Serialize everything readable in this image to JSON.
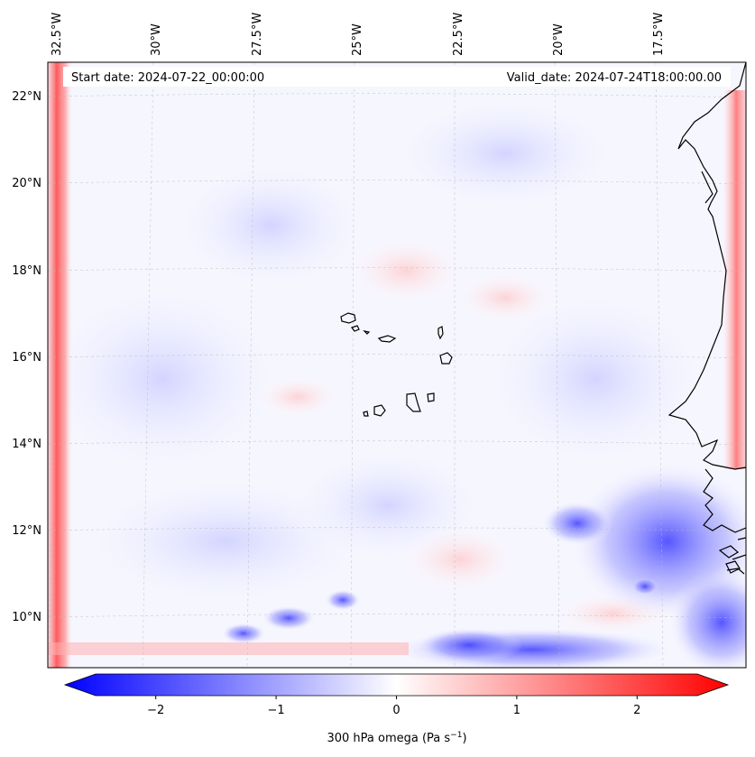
{
  "map": {
    "start_date": "Start date: 2024-07-22_00:00:00",
    "valid_date": "Valid_date: 2024-07-24T18:00:00.00",
    "lon_labels": [
      "32.5°W",
      "30°W",
      "27.5°W",
      "25°W",
      "22.5°W",
      "20°W",
      "17.5°W"
    ],
    "lat_labels": [
      "22°N",
      "20°N",
      "18°N",
      "16°N",
      "14°N",
      "12°N",
      "10°N"
    ],
    "colorbar": {
      "ticks": [
        "−2",
        "−1",
        "0",
        "1",
        "2"
      ],
      "tick_values": [
        -2,
        -1,
        0,
        1,
        2
      ],
      "range": [
        -2.5,
        2.5
      ],
      "label": "300 hPa omega (Pa s",
      "label_sup": "−1",
      "label_end": ")",
      "extend": "both",
      "colormap": "bwr"
    },
    "colors": {
      "negative": "#0000ff",
      "zero": "#ffffff",
      "positive": "#ff0000",
      "coast": "#000000"
    }
  }
}
